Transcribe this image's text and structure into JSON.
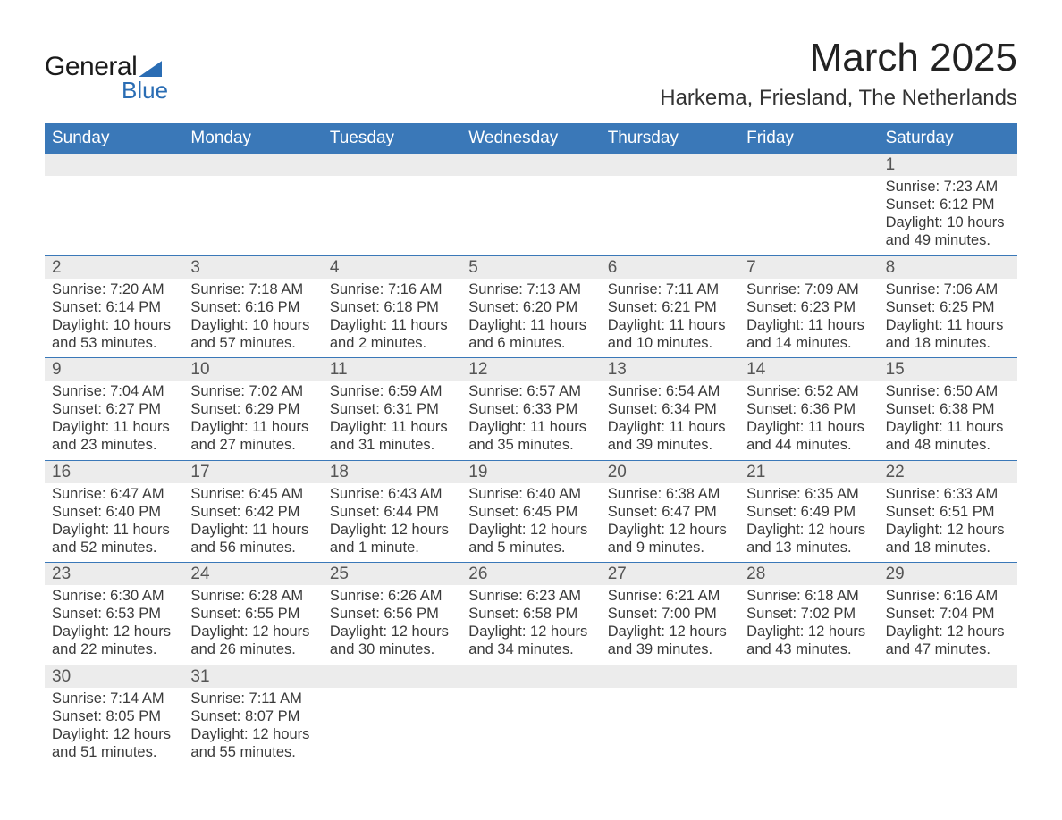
{
  "logo": {
    "line1": "General",
    "line2": "Blue",
    "accent_color": "#2a6db4"
  },
  "title": "March 2025",
  "location": "Harkema, Friesland, The Netherlands",
  "colors": {
    "header_bg": "#3a78b8",
    "header_text": "#ffffff",
    "strip_bg": "#ececec",
    "row_divider": "#3a78b8",
    "body_text": "#3a3a3a",
    "daynum_text": "#555555",
    "page_bg": "#ffffff"
  },
  "fonts": {
    "title_size_pt": 33,
    "location_size_pt": 18,
    "weekday_size_pt": 14,
    "body_size_pt": 12
  },
  "weekdays": [
    "Sunday",
    "Monday",
    "Tuesday",
    "Wednesday",
    "Thursday",
    "Friday",
    "Saturday"
  ],
  "weeks": [
    [
      null,
      null,
      null,
      null,
      null,
      null,
      {
        "n": "1",
        "sunrise": "7:23 AM",
        "sunset": "6:12 PM",
        "daylight": "10 hours and 49 minutes."
      }
    ],
    [
      {
        "n": "2",
        "sunrise": "7:20 AM",
        "sunset": "6:14 PM",
        "daylight": "10 hours and 53 minutes."
      },
      {
        "n": "3",
        "sunrise": "7:18 AM",
        "sunset": "6:16 PM",
        "daylight": "10 hours and 57 minutes."
      },
      {
        "n": "4",
        "sunrise": "7:16 AM",
        "sunset": "6:18 PM",
        "daylight": "11 hours and 2 minutes."
      },
      {
        "n": "5",
        "sunrise": "7:13 AM",
        "sunset": "6:20 PM",
        "daylight": "11 hours and 6 minutes."
      },
      {
        "n": "6",
        "sunrise": "7:11 AM",
        "sunset": "6:21 PM",
        "daylight": "11 hours and 10 minutes."
      },
      {
        "n": "7",
        "sunrise": "7:09 AM",
        "sunset": "6:23 PM",
        "daylight": "11 hours and 14 minutes."
      },
      {
        "n": "8",
        "sunrise": "7:06 AM",
        "sunset": "6:25 PM",
        "daylight": "11 hours and 18 minutes."
      }
    ],
    [
      {
        "n": "9",
        "sunrise": "7:04 AM",
        "sunset": "6:27 PM",
        "daylight": "11 hours and 23 minutes."
      },
      {
        "n": "10",
        "sunrise": "7:02 AM",
        "sunset": "6:29 PM",
        "daylight": "11 hours and 27 minutes."
      },
      {
        "n": "11",
        "sunrise": "6:59 AM",
        "sunset": "6:31 PM",
        "daylight": "11 hours and 31 minutes."
      },
      {
        "n": "12",
        "sunrise": "6:57 AM",
        "sunset": "6:33 PM",
        "daylight": "11 hours and 35 minutes."
      },
      {
        "n": "13",
        "sunrise": "6:54 AM",
        "sunset": "6:34 PM",
        "daylight": "11 hours and 39 minutes."
      },
      {
        "n": "14",
        "sunrise": "6:52 AM",
        "sunset": "6:36 PM",
        "daylight": "11 hours and 44 minutes."
      },
      {
        "n": "15",
        "sunrise": "6:50 AM",
        "sunset": "6:38 PM",
        "daylight": "11 hours and 48 minutes."
      }
    ],
    [
      {
        "n": "16",
        "sunrise": "6:47 AM",
        "sunset": "6:40 PM",
        "daylight": "11 hours and 52 minutes."
      },
      {
        "n": "17",
        "sunrise": "6:45 AM",
        "sunset": "6:42 PM",
        "daylight": "11 hours and 56 minutes."
      },
      {
        "n": "18",
        "sunrise": "6:43 AM",
        "sunset": "6:44 PM",
        "daylight": "12 hours and 1 minute."
      },
      {
        "n": "19",
        "sunrise": "6:40 AM",
        "sunset": "6:45 PM",
        "daylight": "12 hours and 5 minutes."
      },
      {
        "n": "20",
        "sunrise": "6:38 AM",
        "sunset": "6:47 PM",
        "daylight": "12 hours and 9 minutes."
      },
      {
        "n": "21",
        "sunrise": "6:35 AM",
        "sunset": "6:49 PM",
        "daylight": "12 hours and 13 minutes."
      },
      {
        "n": "22",
        "sunrise": "6:33 AM",
        "sunset": "6:51 PM",
        "daylight": "12 hours and 18 minutes."
      }
    ],
    [
      {
        "n": "23",
        "sunrise": "6:30 AM",
        "sunset": "6:53 PM",
        "daylight": "12 hours and 22 minutes."
      },
      {
        "n": "24",
        "sunrise": "6:28 AM",
        "sunset": "6:55 PM",
        "daylight": "12 hours and 26 minutes."
      },
      {
        "n": "25",
        "sunrise": "6:26 AM",
        "sunset": "6:56 PM",
        "daylight": "12 hours and 30 minutes."
      },
      {
        "n": "26",
        "sunrise": "6:23 AM",
        "sunset": "6:58 PM",
        "daylight": "12 hours and 34 minutes."
      },
      {
        "n": "27",
        "sunrise": "6:21 AM",
        "sunset": "7:00 PM",
        "daylight": "12 hours and 39 minutes."
      },
      {
        "n": "28",
        "sunrise": "6:18 AM",
        "sunset": "7:02 PM",
        "daylight": "12 hours and 43 minutes."
      },
      {
        "n": "29",
        "sunrise": "6:16 AM",
        "sunset": "7:04 PM",
        "daylight": "12 hours and 47 minutes."
      }
    ],
    [
      {
        "n": "30",
        "sunrise": "7:14 AM",
        "sunset": "8:05 PM",
        "daylight": "12 hours and 51 minutes."
      },
      {
        "n": "31",
        "sunrise": "7:11 AM",
        "sunset": "8:07 PM",
        "daylight": "12 hours and 55 minutes."
      },
      null,
      null,
      null,
      null,
      null
    ]
  ],
  "labels": {
    "sunrise": "Sunrise: ",
    "sunset": "Sunset: ",
    "daylight": "Daylight: "
  }
}
